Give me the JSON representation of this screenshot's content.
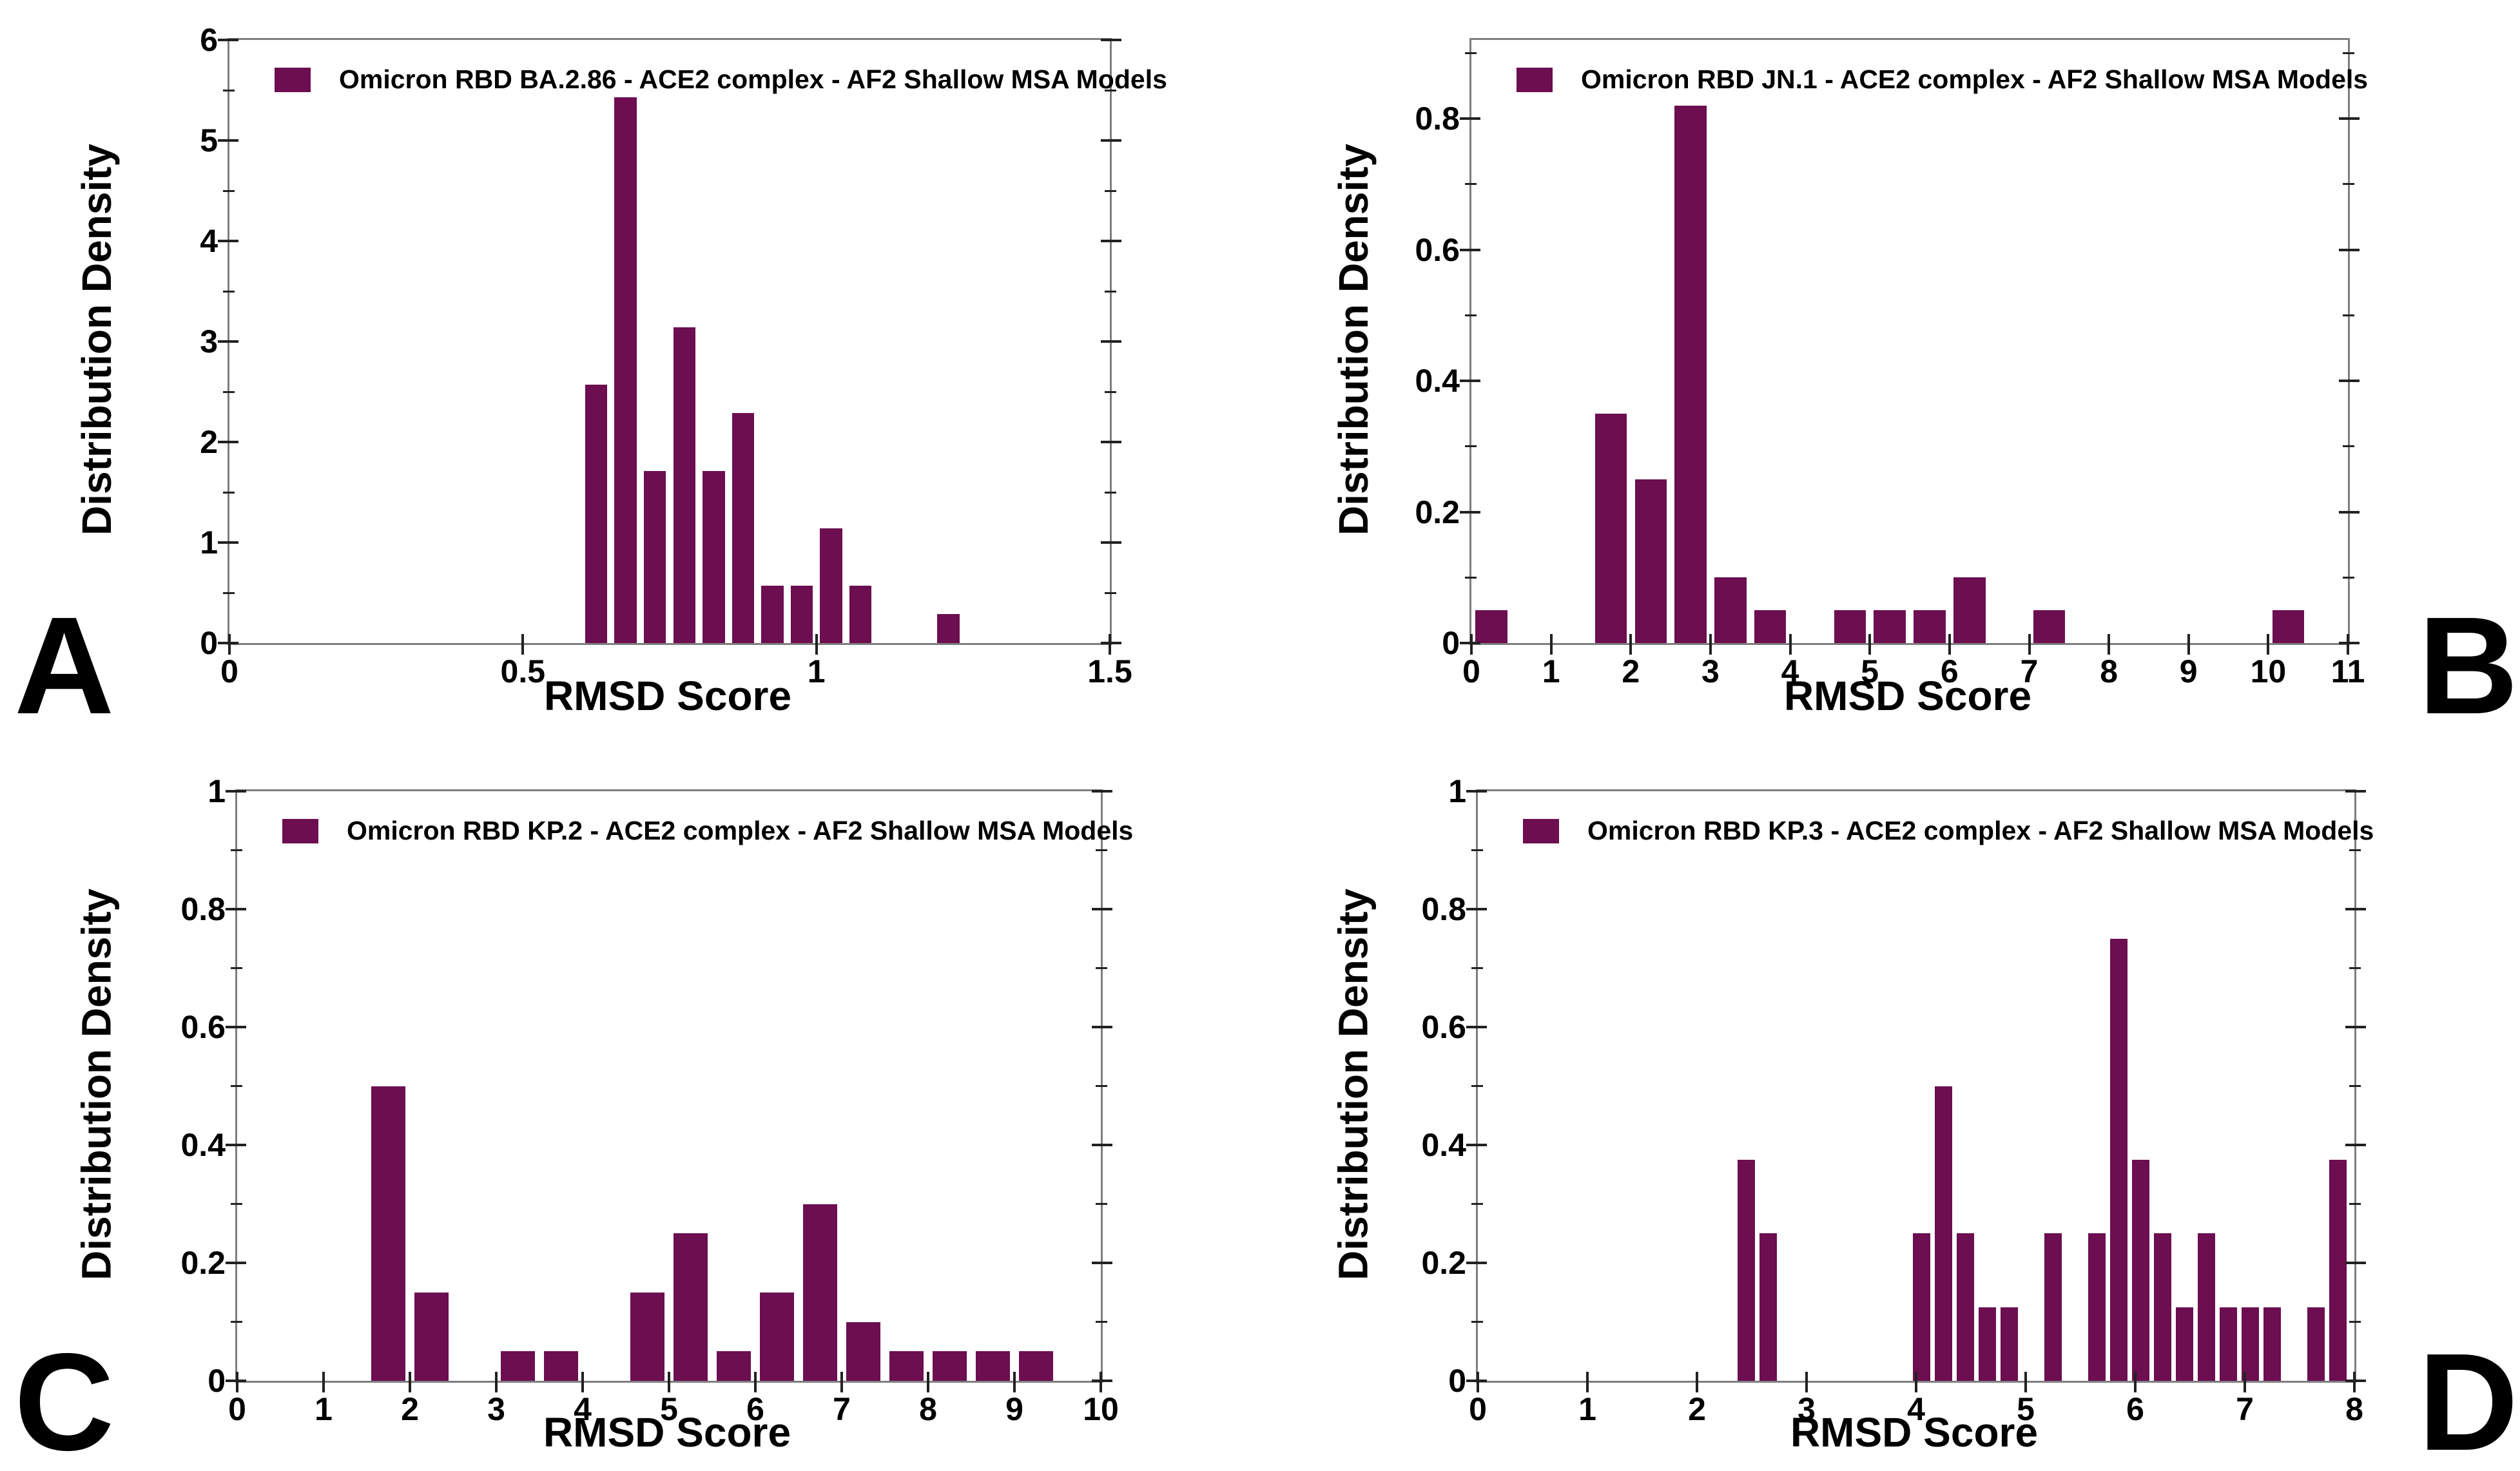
{
  "figure": {
    "background": "#ffffff",
    "bar_color": "#6C0E50",
    "spine_color": "#7e7e7e",
    "tick_color": "#222222",
    "text_color": "#000000"
  },
  "chart_data": [
    {
      "id": "A",
      "type": "bar",
      "panel_letter": "A",
      "legend": "Omicron RBD BA.2.86 - ACE2 complex - AF2 Shallow MSA Models",
      "xlabel": "RMSD Score",
      "ylabel": "Distribution Density",
      "xlim": [
        0,
        1.5
      ],
      "ylim": [
        0,
        6
      ],
      "xticks": [
        0,
        0.5,
        1,
        1.5
      ],
      "xtick_labels": [
        "0",
        "0.5",
        "1",
        "1.5"
      ],
      "yticks": [
        0,
        1,
        2,
        3,
        4,
        5,
        6
      ],
      "ytick_labels": [
        "0",
        "1",
        "2",
        "3",
        "4",
        "5",
        "6"
      ],
      "y_minor_step": 0.5,
      "bin_width": 0.05,
      "bar_width": 0.038,
      "grid": false,
      "legend_position": "upper-left",
      "bars": [
        {
          "x": 0.625,
          "h": 2.57
        },
        {
          "x": 0.675,
          "h": 5.43
        },
        {
          "x": 0.725,
          "h": 1.71
        },
        {
          "x": 0.775,
          "h": 3.14
        },
        {
          "x": 0.825,
          "h": 1.71
        },
        {
          "x": 0.875,
          "h": 2.29
        },
        {
          "x": 0.925,
          "h": 0.57
        },
        {
          "x": 0.975,
          "h": 0.57
        },
        {
          "x": 1.025,
          "h": 1.14
        },
        {
          "x": 1.075,
          "h": 0.57
        },
        {
          "x": 1.225,
          "h": 0.29
        }
      ]
    },
    {
      "id": "B",
      "type": "bar",
      "panel_letter": "B",
      "legend": "Omicron RBD JN.1 - ACE2 complex - AF2 Shallow MSA Models",
      "xlabel": "RMSD Score",
      "ylabel": "Distribution Density",
      "xlim": [
        0,
        11
      ],
      "ylim": [
        0,
        0.92
      ],
      "xticks": [
        0,
        1,
        2,
        3,
        4,
        5,
        6,
        7,
        8,
        9,
        10,
        11
      ],
      "xtick_labels": [
        "0",
        "1",
        "2",
        "3",
        "4",
        "5",
        "6",
        "7",
        "8",
        "9",
        "10",
        "11"
      ],
      "yticks": [
        0,
        0.2,
        0.4,
        0.6,
        0.8
      ],
      "ytick_labels": [
        "0",
        "0.2",
        "0.4",
        "0.6",
        "0.8"
      ],
      "y_minor_step": 0.1,
      "bin_width": 0.5,
      "bar_width": 0.4,
      "grid": false,
      "legend_position": "upper-left",
      "bars": [
        {
          "x": 0.25,
          "h": 0.05
        },
        {
          "x": 1.75,
          "h": 0.35
        },
        {
          "x": 2.25,
          "h": 0.25
        },
        {
          "x": 2.75,
          "h": 0.82
        },
        {
          "x": 3.25,
          "h": 0.1
        },
        {
          "x": 3.75,
          "h": 0.05
        },
        {
          "x": 4.75,
          "h": 0.05
        },
        {
          "x": 5.25,
          "h": 0.05
        },
        {
          "x": 5.75,
          "h": 0.05
        },
        {
          "x": 6.25,
          "h": 0.1
        },
        {
          "x": 7.25,
          "h": 0.05
        },
        {
          "x": 10.25,
          "h": 0.05
        }
      ]
    },
    {
      "id": "C",
      "type": "bar",
      "panel_letter": "C",
      "legend": "Omicron RBD KP.2 - ACE2 complex - AF2 Shallow MSA Models",
      "xlabel": "RMSD Score",
      "ylabel": "Distribution Density",
      "xlim": [
        0,
        10
      ],
      "ylim": [
        0,
        1
      ],
      "xticks": [
        0,
        1,
        2,
        3,
        4,
        5,
        6,
        7,
        8,
        9,
        10
      ],
      "xtick_labels": [
        "0",
        "1",
        "2",
        "3",
        "4",
        "5",
        "6",
        "7",
        "8",
        "9",
        "10"
      ],
      "yticks": [
        0,
        0.2,
        0.4,
        0.6,
        0.8,
        1
      ],
      "ytick_labels": [
        "0",
        "0.2",
        "0.4",
        "0.6",
        "0.8",
        "1"
      ],
      "y_minor_step": 0.1,
      "bin_width": 0.5,
      "bar_width": 0.4,
      "grid": false,
      "legend_position": "upper-left",
      "bars": [
        {
          "x": 1.75,
          "h": 0.5
        },
        {
          "x": 2.25,
          "h": 0.15
        },
        {
          "x": 3.25,
          "h": 0.05
        },
        {
          "x": 3.75,
          "h": 0.05
        },
        {
          "x": 4.75,
          "h": 0.15
        },
        {
          "x": 5.25,
          "h": 0.25
        },
        {
          "x": 5.75,
          "h": 0.05
        },
        {
          "x": 6.25,
          "h": 0.15
        },
        {
          "x": 6.75,
          "h": 0.3
        },
        {
          "x": 7.25,
          "h": 0.1
        },
        {
          "x": 7.75,
          "h": 0.05
        },
        {
          "x": 8.25,
          "h": 0.05
        },
        {
          "x": 8.75,
          "h": 0.05
        },
        {
          "x": 9.25,
          "h": 0.05
        }
      ]
    },
    {
      "id": "D",
      "type": "bar",
      "panel_letter": "D",
      "legend": "Omicron RBD KP.3 - ACE2 complex - AF2 Shallow MSA Models",
      "xlabel": "RMSD Score",
      "ylabel": "Distribution Density",
      "xlim": [
        0,
        8
      ],
      "ylim": [
        0,
        1
      ],
      "xticks": [
        0,
        1,
        2,
        3,
        4,
        5,
        6,
        7,
        8
      ],
      "xtick_labels": [
        "0",
        "1",
        "2",
        "3",
        "4",
        "5",
        "6",
        "7",
        "8"
      ],
      "yticks": [
        0,
        0.2,
        0.4,
        0.6,
        0.8,
        1
      ],
      "ytick_labels": [
        "0",
        "0.2",
        "0.4",
        "0.6",
        "0.8",
        "1"
      ],
      "y_minor_step": 0.1,
      "bin_width": 0.2,
      "bar_width": 0.16,
      "grid": false,
      "legend_position": "upper-left",
      "bars": [
        {
          "x": 2.45,
          "h": 0.375
        },
        {
          "x": 2.65,
          "h": 0.25
        },
        {
          "x": 4.05,
          "h": 0.25
        },
        {
          "x": 4.25,
          "h": 0.5
        },
        {
          "x": 4.45,
          "h": 0.25
        },
        {
          "x": 4.65,
          "h": 0.125
        },
        {
          "x": 4.85,
          "h": 0.125
        },
        {
          "x": 5.25,
          "h": 0.25
        },
        {
          "x": 5.65,
          "h": 0.25
        },
        {
          "x": 5.85,
          "h": 0.75
        },
        {
          "x": 6.05,
          "h": 0.375
        },
        {
          "x": 6.25,
          "h": 0.25
        },
        {
          "x": 6.45,
          "h": 0.125
        },
        {
          "x": 6.65,
          "h": 0.25
        },
        {
          "x": 6.85,
          "h": 0.125
        },
        {
          "x": 7.05,
          "h": 0.125
        },
        {
          "x": 7.25,
          "h": 0.125
        },
        {
          "x": 7.65,
          "h": 0.125
        },
        {
          "x": 7.85,
          "h": 0.375
        }
      ]
    }
  ]
}
